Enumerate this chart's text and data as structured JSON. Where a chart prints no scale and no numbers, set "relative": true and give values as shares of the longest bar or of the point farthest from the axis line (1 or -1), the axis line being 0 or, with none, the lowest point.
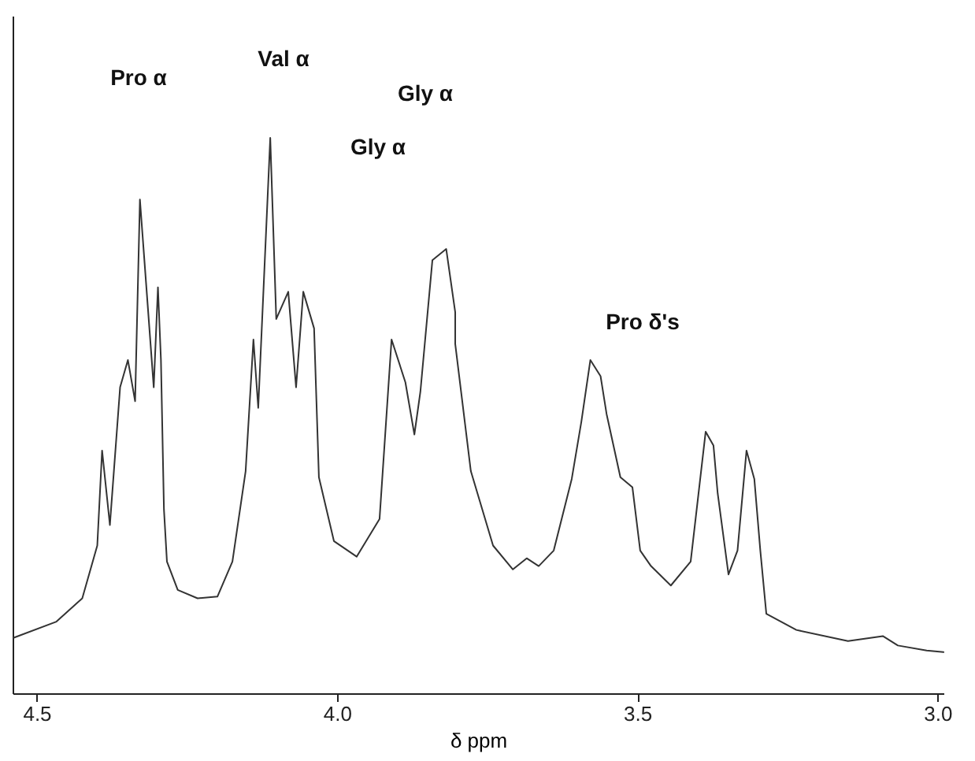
{
  "chart_data": {
    "type": "line",
    "relative": true,
    "xlabel": "δ ppm",
    "xlim": [
      4.54,
      2.99
    ],
    "xticks": [
      {
        "value": 4.5,
        "label": "4.5"
      },
      {
        "value": 4.0,
        "label": "4.0"
      },
      {
        "value": 3.5,
        "label": "3.5"
      },
      {
        "value": 3.0,
        "label": "3.0"
      }
    ],
    "x": [
      4.538,
      4.467,
      4.424,
      4.399,
      4.391,
      4.378,
      4.361,
      4.348,
      4.336,
      4.328,
      4.305,
      4.298,
      4.293,
      4.288,
      4.283,
      4.265,
      4.232,
      4.199,
      4.174,
      4.152,
      4.139,
      4.131,
      4.111,
      4.101,
      4.081,
      4.068,
      4.056,
      4.038,
      4.03,
      4.005,
      3.967,
      3.929,
      3.909,
      3.886,
      3.871,
      3.861,
      3.841,
      3.818,
      3.803,
      3.803,
      3.777,
      3.74,
      3.707,
      3.684,
      3.664,
      3.639,
      3.609,
      3.593,
      3.578,
      3.561,
      3.551,
      3.528,
      3.508,
      3.495,
      3.477,
      3.444,
      3.411,
      3.386,
      3.373,
      3.366,
      3.348,
      3.333,
      3.318,
      3.305,
      3.295,
      3.285,
      3.235,
      3.149,
      3.091,
      3.066,
      3.018,
      2.99
    ],
    "series": [
      {
        "color": "#333333",
        "values": [
          0.1,
          0.129,
          0.171,
          0.266,
          0.437,
          0.303,
          0.551,
          0.6,
          0.526,
          0.889,
          0.551,
          0.731,
          0.6,
          0.331,
          0.237,
          0.186,
          0.171,
          0.174,
          0.237,
          0.4,
          0.637,
          0.514,
          1.0,
          0.674,
          0.723,
          0.551,
          0.723,
          0.657,
          0.389,
          0.274,
          0.246,
          0.314,
          0.637,
          0.56,
          0.466,
          0.543,
          0.78,
          0.8,
          0.686,
          0.629,
          0.4,
          0.266,
          0.223,
          0.243,
          0.229,
          0.257,
          0.386,
          0.489,
          0.6,
          0.571,
          0.503,
          0.389,
          0.371,
          0.257,
          0.229,
          0.194,
          0.237,
          0.471,
          0.446,
          0.36,
          0.214,
          0.257,
          0.437,
          0.386,
          0.257,
          0.143,
          0.114,
          0.094,
          0.103,
          0.086,
          0.077,
          0.074
        ]
      }
    ],
    "annotations": [
      "Pro α",
      "Val α",
      "Gly α",
      "Gly α",
      "Pro δ's"
    ],
    "grid": false,
    "marker": "none",
    "line_style": "solid"
  }
}
